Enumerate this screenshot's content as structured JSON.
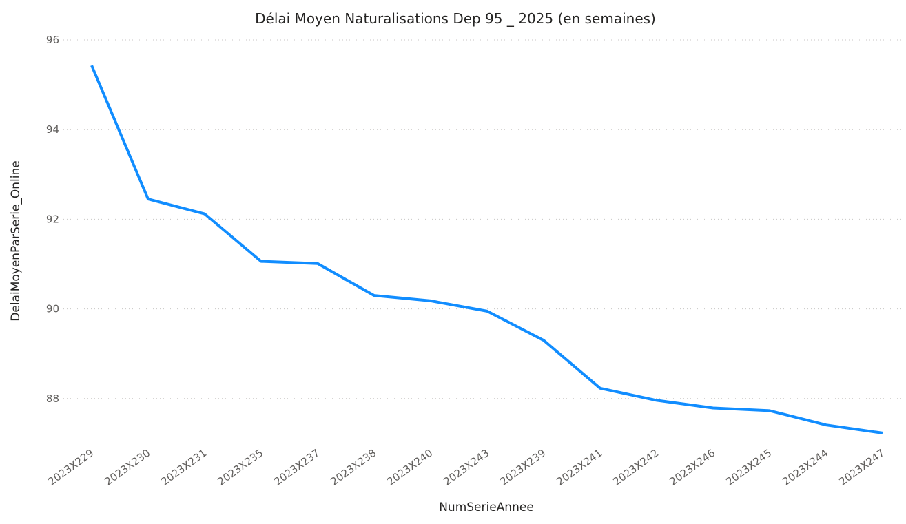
{
  "chart_data": {
    "type": "line",
    "title": "Délai Moyen Naturalisations Dep 95 _ 2025 (en semaines)",
    "xlabel": "NumSerieAnnee",
    "ylabel": "DelaiMoyenParSerie_Online",
    "ylim": [
      87,
      96
    ],
    "yticks": [
      88,
      90,
      92,
      94,
      96
    ],
    "grid": true,
    "categories": [
      "2023X229",
      "2023X230",
      "2023X231",
      "2023X235",
      "2023X237",
      "2023X238",
      "2023X240",
      "2023X243",
      "2023X239",
      "2023X241",
      "2023X242",
      "2023X246",
      "2023X245",
      "2023X244",
      "2023X247"
    ],
    "series": [
      {
        "name": "DelaiMoyenParSerie_Online",
        "color": "#118DFF",
        "values": [
          95.43,
          92.45,
          92.12,
          91.06,
          91.01,
          90.3,
          90.18,
          89.95,
          89.3,
          88.23,
          87.96,
          87.79,
          87.73,
          87.41,
          87.23
        ]
      }
    ]
  }
}
